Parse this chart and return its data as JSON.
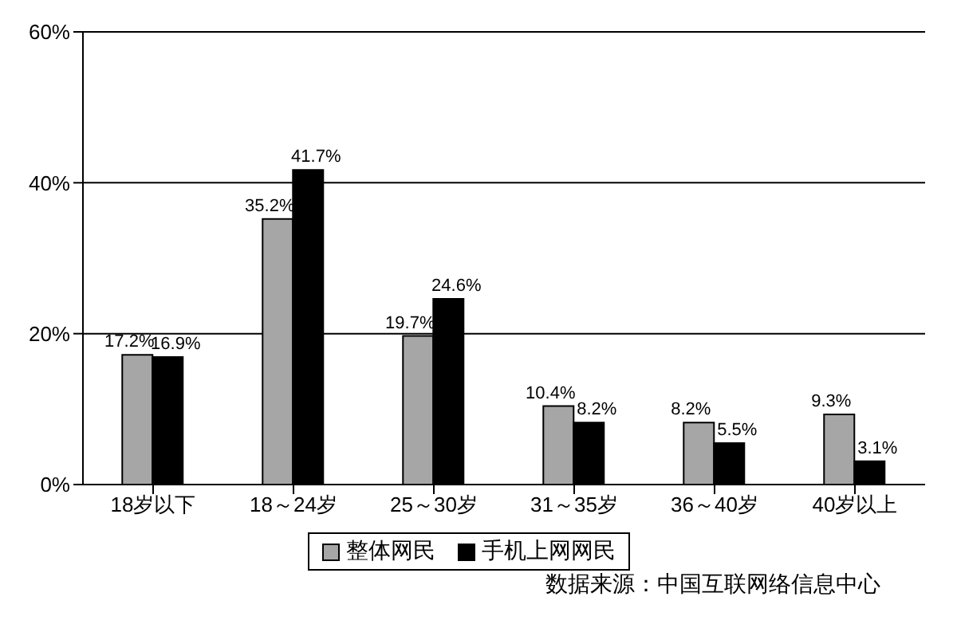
{
  "chart_data": {
    "type": "bar",
    "categories": [
      "18岁以下",
      "18～24岁",
      "25～30岁",
      "31～35岁",
      "36～40岁",
      "40岁以上"
    ],
    "series": [
      {
        "name": "整体网民",
        "color": "#a6a6a6",
        "values": [
          17.2,
          35.2,
          19.7,
          10.4,
          8.2,
          9.3
        ]
      },
      {
        "name": "手机上网网民",
        "color": "#000000",
        "values": [
          16.9,
          41.7,
          24.6,
          8.2,
          5.5,
          3.1
        ]
      }
    ],
    "value_labels": [
      [
        "17.2%",
        "35.2%",
        "19.7%",
        "10.4%",
        "8.2%",
        "9.3%"
      ],
      [
        "16.9%",
        "41.7%",
        "24.6%",
        "8.2%",
        "5.5%",
        "3.1%"
      ]
    ],
    "ylim": [
      0,
      60
    ],
    "yticks": [
      {
        "value": 0,
        "label": "0%"
      },
      {
        "value": 20,
        "label": "20%"
      },
      {
        "value": 40,
        "label": "40%"
      },
      {
        "value": 60,
        "label": "60%"
      }
    ],
    "grid": "y",
    "legend": "bottom",
    "annotations": [
      "数据来源：中国互联网络信息中心"
    ]
  }
}
